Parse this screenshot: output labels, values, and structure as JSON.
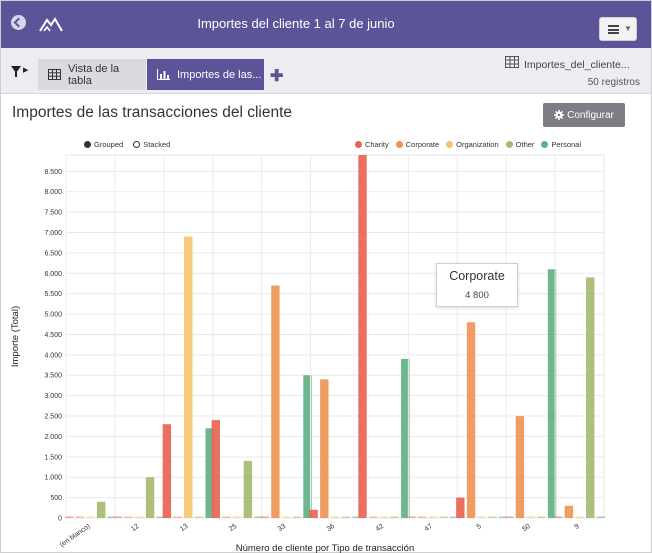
{
  "header": {
    "title": "Importes del cliente 1 al 7 de junio"
  },
  "tabs": [
    {
      "label": "Vista de la tabla"
    },
    {
      "label": "Importes de las..."
    }
  ],
  "datasource": {
    "name": "Importes_del_cliente...",
    "count": "50 registros"
  },
  "page": {
    "title": "Importes de las transacciones del cliente",
    "configure_label": "Configurar"
  },
  "mode_legend": {
    "grouped": "Grouped",
    "stacked": "Stacked"
  },
  "tooltip": {
    "title": "Corporate",
    "value": "4 800"
  },
  "chart_data": {
    "type": "bar",
    "mode": "grouped",
    "xlabel": "Número de cliente por Tipo de transacción",
    "ylabel": "Importe (Total)",
    "ylim": [
      0,
      8900
    ],
    "yticks": [
      0,
      500,
      1000,
      1500,
      2000,
      2500,
      3000,
      3500,
      4000,
      4500,
      5000,
      5500,
      6000,
      6500,
      7000,
      7500,
      8000,
      8500
    ],
    "ytick_labels": [
      "0",
      "500",
      "1.000",
      "1.500",
      "2.000",
      "2.500",
      "3.000",
      "3.500",
      "4.000",
      "4.500",
      "5.000",
      "5.500",
      "6.000",
      "6.500",
      "7.000",
      "7.500",
      "8.000",
      "8.500"
    ],
    "categories": [
      "(en blanco)",
      "12",
      "13",
      "25",
      "33",
      "36",
      "42",
      "47",
      "5",
      "50",
      "9"
    ],
    "legend_position": "top-right",
    "grid": true,
    "series": [
      {
        "name": "Charity",
        "color": "#e8624f",
        "values": [
          0,
          0,
          2300,
          2400,
          0,
          200,
          8900,
          0,
          500,
          0,
          0
        ]
      },
      {
        "name": "Corporate",
        "color": "#ee9152",
        "values": [
          0,
          0,
          0,
          0,
          5700,
          3400,
          0,
          0,
          4800,
          2500,
          300
        ]
      },
      {
        "name": "Organization",
        "color": "#f2c56b",
        "values": [
          0,
          0,
          6900,
          0,
          0,
          0,
          0,
          0,
          0,
          0,
          0
        ]
      },
      {
        "name": "Other",
        "color": "#a4b86f",
        "values": [
          400,
          1000,
          0,
          1400,
          0,
          0,
          0,
          0,
          0,
          0,
          5900
        ]
      },
      {
        "name": "Personal",
        "color": "#5eaf82",
        "values": [
          0,
          0,
          2200,
          0,
          3500,
          0,
          3900,
          0,
          0,
          6100,
          0
        ]
      }
    ]
  }
}
